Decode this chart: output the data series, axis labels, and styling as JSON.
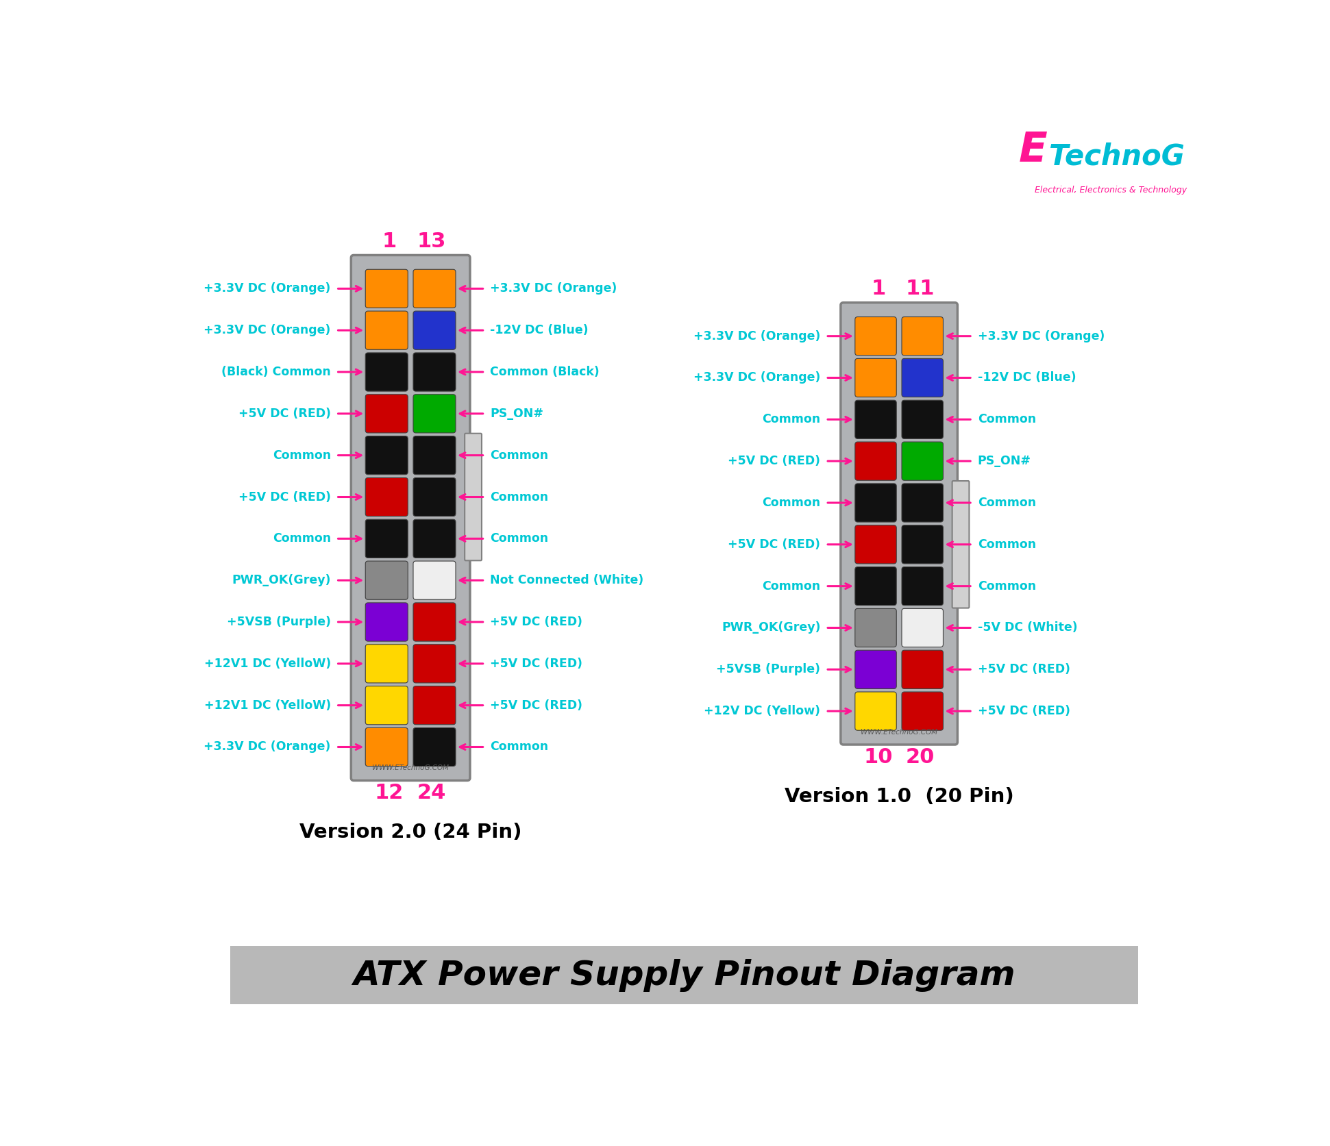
{
  "bg_color": "#ffffff",
  "title_text": "ATX Power Supply Pinout Diagram",
  "title_box_color": "#b8b8b8",
  "title_font_size": 36,
  "label_color": "#00c8d4",
  "arrow_color": "#ff1493",
  "pin_num_color": "#ff1493",
  "connector_fill": "#b0b2b5",
  "connector_border": "#808080",
  "tab_fill": "#d0d0d0",
  "watermark_color": "#555555",
  "v24_left_labels": [
    "+3.3V DC (Orange)",
    "+3.3V DC (Orange)",
    "(Black) Common",
    "+5V DC (RED)",
    "Common",
    "+5V DC (RED)",
    "Common",
    "PWR_OK(Grey)",
    "+5VSB (Purple)",
    "+12V1 DC (YelloW)",
    "+12V1 DC (YelloW)",
    "+3.3V DC (Orange)"
  ],
  "v24_left_colors": [
    "#FF8C00",
    "#FF8C00",
    "#111111",
    "#cc0000",
    "#111111",
    "#cc0000",
    "#111111",
    "#888888",
    "#7B00D4",
    "#FFD700",
    "#FFD700",
    "#FF8C00"
  ],
  "v24_right_labels": [
    "+3.3V DC (Orange)",
    "-12V DC (Blue)",
    "Common (Black)",
    "PS_ON#",
    "Common",
    "Common",
    "Common",
    "Not Connected (White)",
    "+5V DC (RED)",
    "+5V DC (RED)",
    "+5V DC (RED)",
    "Common"
  ],
  "v24_right_colors": [
    "#FF8C00",
    "#2233cc",
    "#111111",
    "#00aa00",
    "#111111",
    "#111111",
    "#111111",
    "#eeeeee",
    "#cc0000",
    "#cc0000",
    "#cc0000",
    "#111111"
  ],
  "v20_left_labels": [
    "+3.3V DC (Orange)",
    "+3.3V DC (Orange)",
    "Common",
    "+5V DC (RED)",
    "Common",
    "+5V DC (RED)",
    "Common",
    "PWR_OK(Grey)",
    "+5VSB (Purple)",
    "+12V DC (Yellow)"
  ],
  "v20_left_colors": [
    "#FF8C00",
    "#FF8C00",
    "#111111",
    "#cc0000",
    "#111111",
    "#cc0000",
    "#111111",
    "#888888",
    "#7B00D4",
    "#FFD700"
  ],
  "v20_right_labels": [
    "+3.3V DC (Orange)",
    "-12V DC (Blue)",
    "Common",
    "PS_ON#",
    "Common",
    "Common",
    "Common",
    "-5V DC (White)",
    "+5V DC (RED)",
    "+5V DC (RED)"
  ],
  "v20_right_colors": [
    "#FF8C00",
    "#2233cc",
    "#111111",
    "#00aa00",
    "#111111",
    "#111111",
    "#111111",
    "#eeeeee",
    "#cc0000",
    "#cc0000"
  ]
}
